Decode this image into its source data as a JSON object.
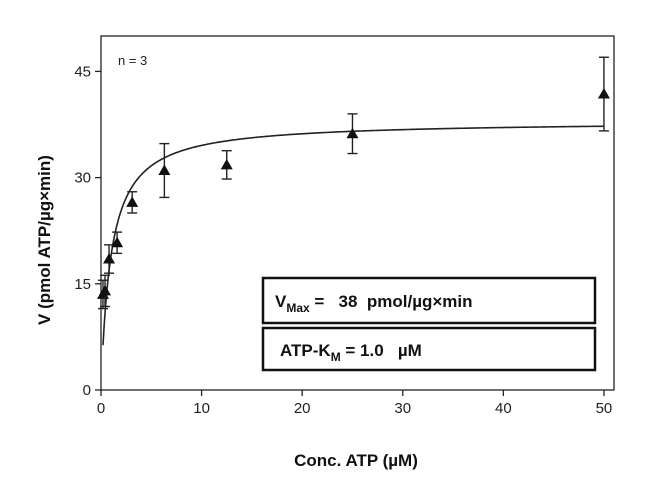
{
  "chart_data": {
    "type": "scatter",
    "title": "",
    "xlabel": "Conc. ATP (µM)",
    "ylabel": "V (pmol ATP/µg×min)",
    "xlim": [
      0,
      51
    ],
    "ylim": [
      0,
      50
    ],
    "xticks": [
      0,
      10,
      20,
      30,
      40,
      50
    ],
    "yticks": [
      0,
      15,
      30,
      45
    ],
    "grid": false,
    "legend": "none",
    "note": "n = 3",
    "series": [
      {
        "marker": "triangle",
        "points": [
          {
            "x": 0.2,
            "y": 13.5,
            "err": 2.0
          },
          {
            "x": 0.4,
            "y": 14.0,
            "err": 2.2
          },
          {
            "x": 0.8,
            "y": 18.5,
            "err": 2.0
          },
          {
            "x": 1.6,
            "y": 20.8,
            "err": 1.5
          },
          {
            "x": 3.1,
            "y": 26.5,
            "err": 1.5
          },
          {
            "x": 6.3,
            "y": 31.0,
            "err": 3.8
          },
          {
            "x": 12.5,
            "y": 31.8,
            "err": 2.0
          },
          {
            "x": 25.0,
            "y": 36.2,
            "err": 2.8
          },
          {
            "x": 50.0,
            "y": 41.8,
            "err": 5.2
          }
        ]
      }
    ],
    "fit": {
      "model": "Michaelis-Menten",
      "vmax": 38,
      "km": 1.0,
      "x_start": 0.2,
      "x_end": 50
    },
    "annotations": [
      {
        "main": "V",
        "sub": "Max",
        "rest": " =   38  pmol/µg×min"
      },
      {
        "main": "ATP-K",
        "sub": "M",
        "rest": " = 1.0   µM"
      }
    ]
  }
}
